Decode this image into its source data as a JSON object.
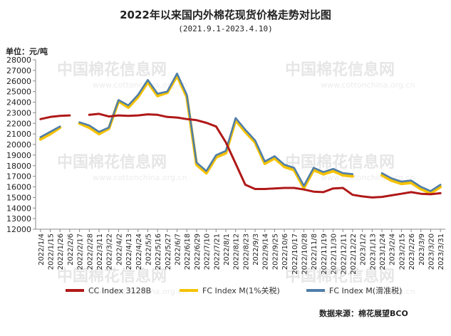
{
  "title": "2022年以来国内外棉花现货价格走势对比图",
  "subtitle": "(2021.9.1-2023.4.10)",
  "unit_label": "单位：元/吨",
  "source": "数据来源：棉花展望BCO",
  "watermark": {
    "cn": "中国棉花信息网",
    "en": "www.cottonchina.org.cn"
  },
  "colors": {
    "cc": "#b01818",
    "fc_tax": "#f5c200",
    "fc_slide": "#4f7ea8"
  },
  "chart_data": {
    "type": "line",
    "title": "2022年以来国内外棉花现货价格走势对比图",
    "ylabel": "单位：元/吨",
    "ylim": [
      12000,
      28000
    ],
    "yticks": [
      12000,
      13000,
      14000,
      15000,
      16000,
      17000,
      18000,
      19000,
      20000,
      21000,
      22000,
      23000,
      24000,
      25000,
      26000,
      27000,
      28000
    ],
    "x_tick_labels": [
      "2022/1/4",
      "2022/1/15",
      "2022/1/26",
      "2022/2/6",
      "2022/2/17",
      "2022/2/28",
      "2022/3/11",
      "2022/3/22",
      "2022/4/2",
      "2022/4/13",
      "2022/4/24",
      "2022/5/5",
      "2022/5/16",
      "2022/5/27",
      "2022/6/7",
      "2022/6/18",
      "2022/6/29",
      "2022/7/10",
      "2022/7/21",
      "2022/8/1",
      "2022/8/12",
      "2022/8/23",
      "2022/9/3",
      "2022/9/14",
      "2022/9/25",
      "2022/10/6",
      "2022/10/17",
      "2022/10/28",
      "2022/11/8",
      "2022/11/19",
      "2022/11/30",
      "2022/12/11",
      "2022/12/22",
      "2023/1/2",
      "2023/1/13",
      "2023/1/24",
      "2023/2/4",
      "2023/2/15",
      "2023/2/26",
      "2023/3/9",
      "2023/3/20",
      "2023/3/31"
    ],
    "grid": false,
    "legend_position": "bottom",
    "series": [
      {
        "name": "CC Index 3128B",
        "color": "#b01818",
        "values": [
          22400,
          22600,
          22700,
          22750,
          null,
          22800,
          22900,
          22650,
          22750,
          22700,
          22750,
          22850,
          22800,
          22600,
          22550,
          22400,
          22300,
          22050,
          21700,
          20200,
          18200,
          16200,
          15800,
          15800,
          15850,
          15900,
          15900,
          15750,
          15550,
          15500,
          15850,
          15900,
          15250,
          15100,
          15000,
          15050,
          15200,
          15350,
          15500,
          15350,
          15300,
          15400
        ]
      },
      {
        "name": "FC Index M(1%关税)",
        "color": "#f5c200",
        "values": [
          20500,
          21000,
          21600,
          null,
          22000,
          21600,
          21000,
          21500,
          24100,
          23500,
          24500,
          25900,
          24600,
          24900,
          26500,
          24500,
          18100,
          17300,
          18800,
          19200,
          22300,
          21200,
          20200,
          18200,
          18700,
          17900,
          17600,
          15900,
          17600,
          17200,
          17500,
          17100,
          17000,
          null,
          null,
          17100,
          16600,
          16300,
          16400,
          15800,
          15400,
          16000
        ]
      },
      {
        "name": "FC Index M(滑准税)",
        "color": "#4f7ea8",
        "values": [
          20700,
          21200,
          21700,
          null,
          22100,
          21800,
          21200,
          21600,
          24200,
          23700,
          24700,
          26100,
          24800,
          25000,
          26700,
          24700,
          18300,
          17500,
          19000,
          19400,
          22500,
          21400,
          20400,
          18400,
          18900,
          18100,
          17800,
          16100,
          17800,
          17400,
          17700,
          17300,
          17200,
          null,
          null,
          17300,
          16800,
          16500,
          16600,
          16000,
          15600,
          16200
        ]
      }
    ]
  }
}
